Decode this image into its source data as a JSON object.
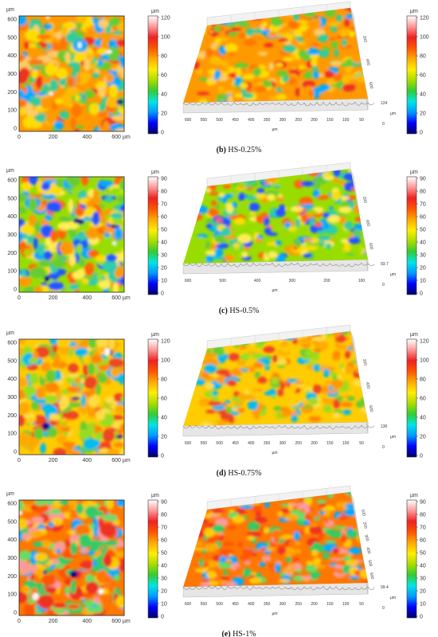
{
  "figure": {
    "unit": "µm",
    "panels": [
      {
        "id": "b",
        "caption_letter": "(b)",
        "caption_text": " HS-0.25%",
        "heatmap_y_ticks": [
          "600",
          "500",
          "400",
          "300",
          "200",
          "100",
          "0"
        ],
        "heatmap_x_ticks": [
          "0",
          "200",
          "400",
          "600 µm"
        ],
        "colorbar_ticks": [
          "120",
          "100",
          "80",
          "60",
          "40",
          "20",
          "0"
        ],
        "view3d_x_ticks": [
          "600",
          "550",
          "500",
          "450",
          "400",
          "350",
          "300",
          "250",
          "200",
          "150",
          "100",
          "50"
        ],
        "view3d_depth_ticks": [
          "200",
          "400",
          "600"
        ],
        "view3d_height_label": "124",
        "view3d_axis_unit": "µm"
      },
      {
        "id": "c",
        "caption_letter": "(c)",
        "caption_text": " HS-0.5%",
        "heatmap_y_ticks": [
          "600",
          "500",
          "400",
          "300",
          "200",
          "100",
          "0"
        ],
        "heatmap_x_ticks": [
          "0",
          "200",
          "400",
          "600 µm"
        ],
        "colorbar_ticks": [
          "90",
          "80",
          "70",
          "60",
          "50",
          "40",
          "30",
          "20",
          "10",
          "0"
        ],
        "view3d_x_ticks": [
          "600",
          "500",
          "400",
          "300",
          "200",
          "100"
        ],
        "view3d_depth_ticks": [
          "200",
          "400",
          "600"
        ],
        "view3d_height_label": "93.7",
        "view3d_axis_unit": "µm"
      },
      {
        "id": "d",
        "caption_letter": "(d)",
        "caption_text": " HS-0.75%",
        "heatmap_y_ticks": [
          "600",
          "500",
          "400",
          "300",
          "200",
          "100",
          "0"
        ],
        "heatmap_x_ticks": [
          "0",
          "200",
          "400",
          "600 µm"
        ],
        "colorbar_ticks": [
          "120",
          "100",
          "80",
          "60",
          "40",
          "20",
          "0"
        ],
        "view3d_x_ticks": [
          "600",
          "550",
          "500",
          "450",
          "400",
          "350",
          "300",
          "250",
          "200",
          "150",
          "100",
          "50"
        ],
        "view3d_depth_ticks": [
          "200",
          "400",
          "600"
        ],
        "view3d_height_label": "130",
        "view3d_axis_unit": "µm"
      },
      {
        "id": "e",
        "caption_letter": "(e)",
        "caption_text": " HS-1%",
        "heatmap_y_ticks": [
          "600",
          "500",
          "400",
          "300",
          "200",
          "100",
          "0"
        ],
        "heatmap_x_ticks": [
          "0",
          "200",
          "400",
          "600 µm"
        ],
        "colorbar_ticks": [
          "90",
          "80",
          "70",
          "60",
          "50",
          "40",
          "30",
          "20",
          "10",
          "0"
        ],
        "view3d_x_ticks": [
          "600",
          "550",
          "500",
          "450",
          "400",
          "350",
          "300",
          "250",
          "200",
          "150",
          "100",
          "50"
        ],
        "view3d_depth_ticks": [
          "100",
          "200",
          "300",
          "400",
          "500",
          "600"
        ],
        "view3d_height_label": "99.4",
        "view3d_axis_unit": "µm"
      }
    ],
    "colormap": [
      "#000066",
      "#0000ff",
      "#0099ff",
      "#00e5e5",
      "#33cc33",
      "#aadd00",
      "#ffee00",
      "#ffaa00",
      "#ff5500",
      "#ee2222",
      "#ff9999",
      "#ffffff"
    ]
  }
}
